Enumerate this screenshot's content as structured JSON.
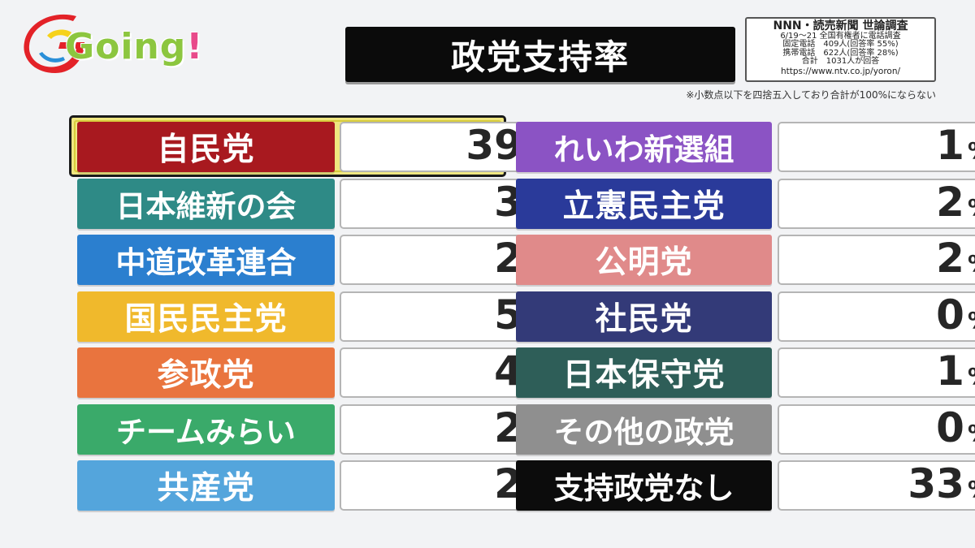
{
  "logo": {
    "text": "Going!",
    "main": "Going",
    "bang": "!"
  },
  "title": "政党支持率",
  "source": {
    "title": "NNN・読売新聞 世論調査",
    "line1": "6/19〜21 全国有権者に電話調査",
    "line2": "固定電話　409人(回答率 55%)",
    "line3": "携帯電話　622人(回答率 28%)",
    "line4": "合計　1031人が回答",
    "url": "https://www.ntv.co.jp/yoron/"
  },
  "note": "※小数点以下を四捨五入しており合計が100%にならない",
  "chart_data": {
    "type": "table",
    "title": "政党支持率",
    "unit": "%",
    "highlighted": "自民党",
    "parties": [
      {
        "name": "自民党",
        "value": 39,
        "color": "#a8191f"
      },
      {
        "name": "日本維新の会",
        "value": 3,
        "color": "#2e8a86"
      },
      {
        "name": "中道改革連合",
        "value": 2,
        "color": "#2b7fcf"
      },
      {
        "name": "国民民主党",
        "value": 5,
        "color": "#f0b92c"
      },
      {
        "name": "参政党",
        "value": 4,
        "color": "#e9743e"
      },
      {
        "name": "チームみらい",
        "value": 2,
        "color": "#3aaa6a"
      },
      {
        "name": "共産党",
        "value": 2,
        "color": "#54a5dc"
      },
      {
        "name": "れいわ新選組",
        "value": 1,
        "color": "#8b53c4"
      },
      {
        "name": "立憲民主党",
        "value": 2,
        "color": "#2a3a9a"
      },
      {
        "name": "公明党",
        "value": 2,
        "color": "#e08a8a"
      },
      {
        "name": "社民党",
        "value": 0,
        "color": "#333a78"
      },
      {
        "name": "日本保守党",
        "value": 1,
        "color": "#2e5e58"
      },
      {
        "name": "その他の政党",
        "value": 0,
        "color": "#8f8f8f"
      },
      {
        "name": "支持政党なし",
        "value": 33,
        "color": "#0c0c0c"
      }
    ]
  }
}
